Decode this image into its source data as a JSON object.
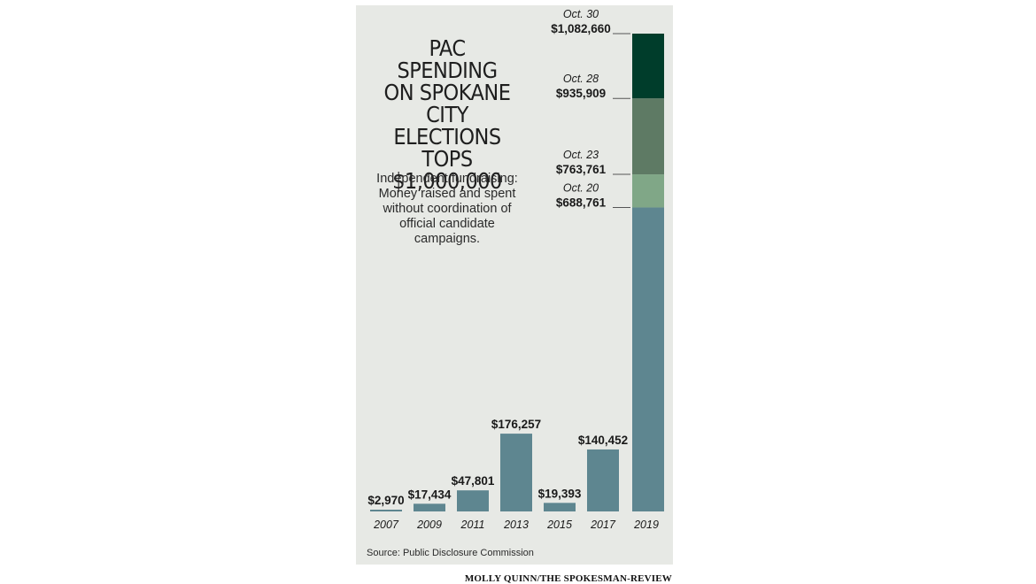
{
  "title": "PAC SPENDING\nON SPOKANE\nCITY ELECTIONS\nTOPS\n$1,000,000",
  "subtitle": "Independent fundraising:\nMoney raised and spent\nwithout coordination of\nofficial candidate\ncampaigns.",
  "source": "Source: Public Disclosure Commission",
  "credit": "MOLLY QUINN/THE SPOKESMAN-REVIEW",
  "colors": {
    "bar": "#5e8690",
    "panel": "#e7e9e5",
    "seg_oct23": "#80a787",
    "seg_oct28": "#5e7a64",
    "seg_oct30": "#003d2b"
  },
  "chart_data": {
    "type": "bar",
    "categories": [
      "2007",
      "2009",
      "2011",
      "2013",
      "2015",
      "2017",
      "2019"
    ],
    "values": [
      2970,
      17434,
      47801,
      176257,
      19393,
      140452,
      1082660
    ],
    "value_labels": [
      "$2,970",
      "$17,434",
      "$47,801",
      "$176,257",
      "$19,393",
      "$140,452",
      ""
    ],
    "ylim": [
      0,
      1082660
    ],
    "grid": false,
    "stacked_2019": [
      {
        "date": "Oct. 20",
        "value": 688761,
        "label": "$688,761",
        "color": "#5e8690"
      },
      {
        "date": "Oct. 23",
        "value": 763761,
        "label": "$763,761",
        "color": "#80a787"
      },
      {
        "date": "Oct. 28",
        "value": 935909,
        "label": "$935,909",
        "color": "#5e7a64"
      },
      {
        "date": "Oct. 30",
        "value": 1082660,
        "label": "$1,082,660",
        "color": "#003d2b"
      }
    ]
  }
}
